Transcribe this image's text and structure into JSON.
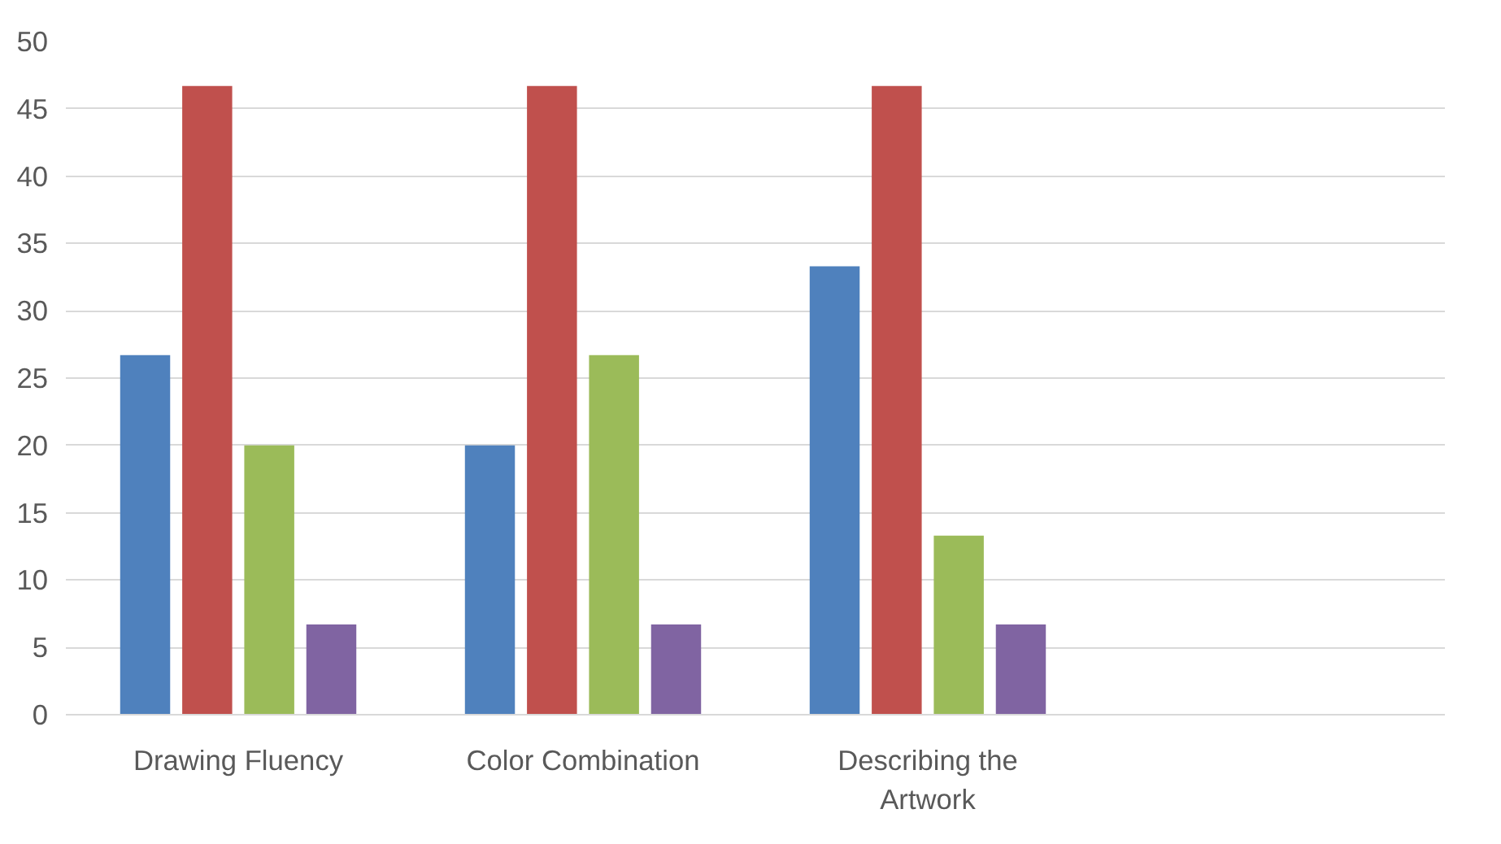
{
  "chart_data": {
    "type": "bar",
    "categories": [
      "Drawing Fluency",
      "Color Combination",
      "Describing the Artwork",
      null
    ],
    "series": [
      {
        "color": "#4f81bd",
        "values": [
          26.7,
          20,
          33.3,
          null
        ]
      },
      {
        "color": "#c0504d",
        "values": [
          46.7,
          46.7,
          46.7,
          null
        ]
      },
      {
        "color": "#9bbb59",
        "values": [
          20,
          26.7,
          13.3,
          null
        ]
      },
      {
        "color": "#8064a2",
        "values": [
          6.7,
          6.7,
          6.7,
          null
        ]
      }
    ],
    "ylim": [
      0,
      50
    ],
    "yticks": [
      0,
      5,
      10,
      15,
      20,
      25,
      30,
      35,
      40,
      45,
      50
    ],
    "grid": "y"
  }
}
